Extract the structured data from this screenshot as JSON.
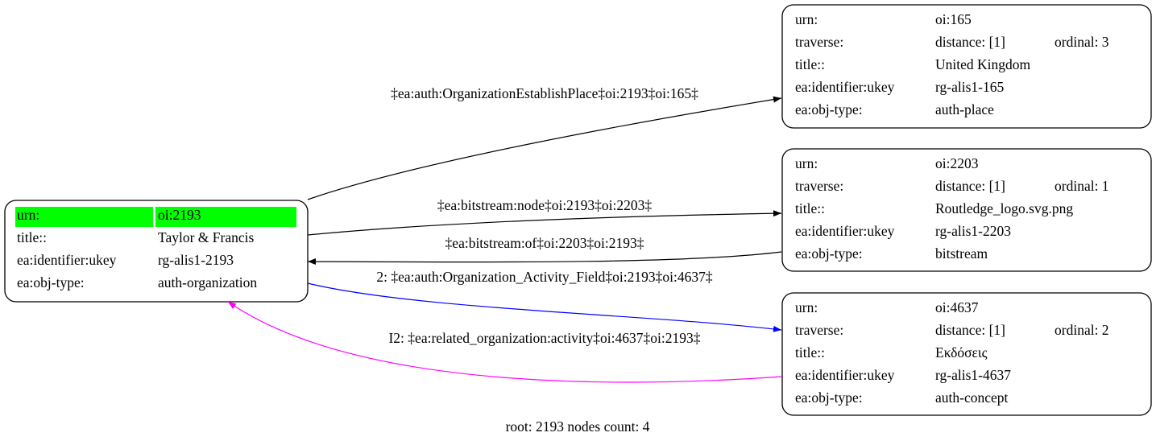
{
  "nodes": [
    {
      "rows": [
        [
          "urn:",
          "oi:2193"
        ],
        [
          "title::",
          "Taylor & Francis"
        ],
        [
          "ea:identifier:ukey",
          "rg-alis1-2193"
        ],
        [
          "ea:obj-type:",
          "auth-organization"
        ]
      ]
    },
    {
      "rows": [
        [
          "urn:",
          "oi:165"
        ],
        [
          "traverse:",
          "distance: [1]",
          "ordinal: 3"
        ],
        [
          "title::",
          "United Kingdom"
        ],
        [
          "ea:identifier:ukey",
          "rg-alis1-165"
        ],
        [
          "ea:obj-type:",
          "auth-place"
        ]
      ]
    },
    {
      "rows": [
        [
          "urn:",
          "oi:2203"
        ],
        [
          "traverse:",
          "distance: [1]",
          "ordinal: 1"
        ],
        [
          "title::",
          "Routledge_logo.svg.png"
        ],
        [
          "ea:identifier:ukey",
          "rg-alis1-2203"
        ],
        [
          "ea:obj-type:",
          "bitstream"
        ]
      ]
    },
    {
      "rows": [
        [
          "urn:",
          "oi:4637"
        ],
        [
          "traverse:",
          "distance: [1]",
          "ordinal: 2"
        ],
        [
          "title::",
          "Εκδόσεις"
        ],
        [
          "ea:identifier:ukey",
          "rg-alis1-4637"
        ],
        [
          "ea:obj-type:",
          "auth-concept"
        ]
      ]
    }
  ],
  "edges": [
    {
      "label": "‡ea:auth:OrganizationEstablishPlace‡oi:2193‡oi:165‡"
    },
    {
      "label": "‡ea:bitstream:node‡oi:2193‡oi:2203‡"
    },
    {
      "label": "‡ea:bitstream:of‡oi:2203‡oi:2193‡"
    },
    {
      "label": "2: ‡ea:auth:Organization_Activity_Field‡oi:2193‡oi:4637‡"
    },
    {
      "label": "I2: ‡ea:related_organization:activity‡oi:4637‡oi:2193‡"
    }
  ],
  "footer": "root: 2193 nodes count: 4"
}
